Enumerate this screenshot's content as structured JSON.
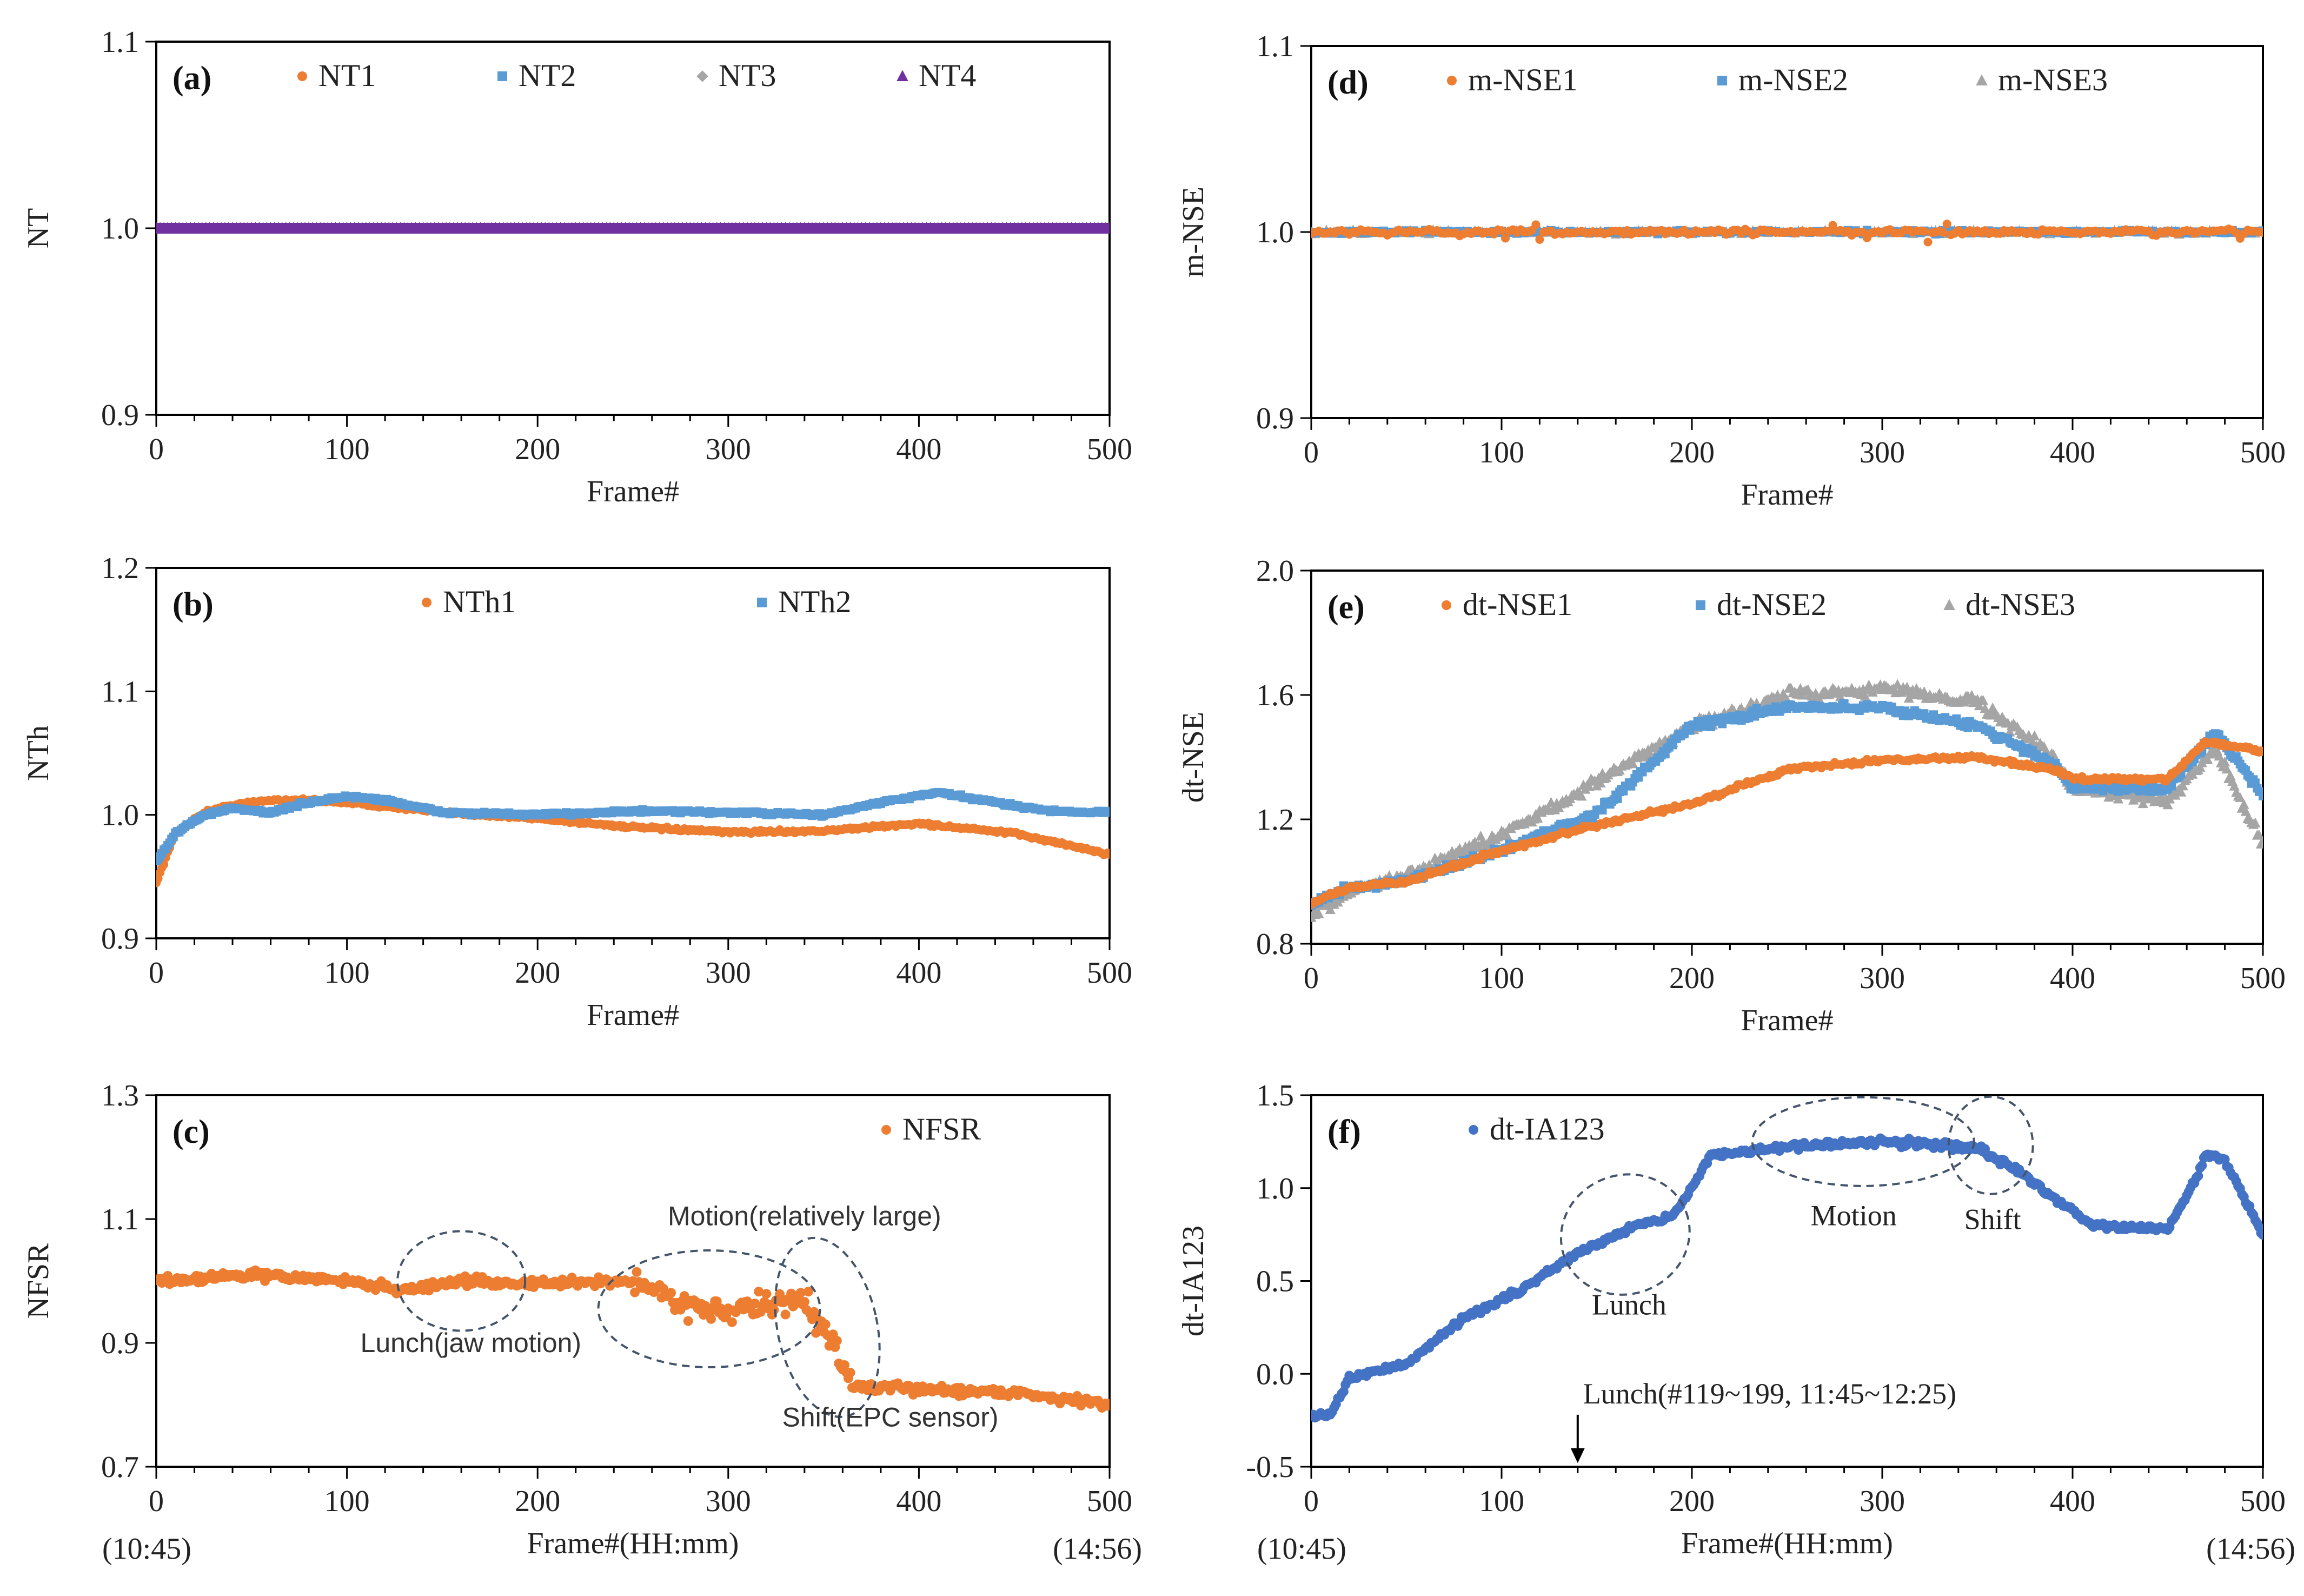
{
  "colors": {
    "orange": "#ED7D31",
    "blue": "#5B9BD5",
    "gray": "#A5A5A5",
    "purple": "#7030A0",
    "darkblue": "#4472C4",
    "frame": "#000000",
    "annot": "#44546A"
  },
  "chart_data": [
    {
      "id": "a",
      "type": "scatter",
      "tag": "(a)",
      "xlabel": "Frame#",
      "ylabel": "NT",
      "xlim": [
        0,
        500
      ],
      "ylim": [
        0.9,
        1.1
      ],
      "xticks": [
        "0",
        "100",
        "200",
        "300",
        "400",
        "500"
      ],
      "yticks": [
        "0.9",
        "1.0",
        "1.1"
      ],
      "legend": [
        "NT1",
        "NT2",
        "NT3",
        "NT4"
      ],
      "series": [
        {
          "name": "NT1",
          "color": "orange",
          "marker": "circle",
          "values": "constant 1.0 for frames 0-500"
        },
        {
          "name": "NT2",
          "color": "blue",
          "marker": "square",
          "values": "constant 1.0 for frames 0-500"
        },
        {
          "name": "NT3",
          "color": "gray",
          "marker": "diamond",
          "values": "constant 1.0 for frames 0-500"
        },
        {
          "name": "NT4",
          "color": "purple",
          "marker": "triangle",
          "values": "constant 1.0 for frames 0-500"
        }
      ]
    },
    {
      "id": "b",
      "type": "scatter",
      "tag": "(b)",
      "xlabel": "Frame#",
      "ylabel": "NTh",
      "xlim": [
        0,
        500
      ],
      "ylim": [
        0.9,
        1.2
      ],
      "xticks": [
        "0",
        "100",
        "200",
        "300",
        "400",
        "500"
      ],
      "yticks": [
        "0.9",
        "1.0",
        "1.1",
        "1.2"
      ],
      "legend": [
        "NTh1",
        "NTh2"
      ],
      "series": [
        {
          "name": "NTh1",
          "color": "orange",
          "marker": "circle",
          "x": [
            0,
            10,
            25,
            40,
            60,
            80,
            100,
            150,
            200,
            250,
            300,
            350,
            400,
            450,
            480,
            500
          ],
          "y": [
            0.945,
            0.985,
            1.002,
            1.008,
            1.012,
            1.012,
            1.01,
            1.002,
            0.997,
            0.99,
            0.986,
            0.987,
            0.993,
            0.985,
            0.975,
            0.968
          ]
        },
        {
          "name": "NTh2",
          "color": "blue",
          "marker": "square",
          "x": [
            0,
            10,
            25,
            40,
            60,
            80,
            100,
            120,
            150,
            200,
            250,
            300,
            350,
            380,
            410,
            440,
            470,
            500
          ],
          "y": [
            0.962,
            0.985,
            1.0,
            1.005,
            1.002,
            1.01,
            1.015,
            1.012,
            1.002,
            1.0,
            1.003,
            1.002,
            1.0,
            1.01,
            1.018,
            1.01,
            1.003,
            1.002
          ]
        }
      ]
    },
    {
      "id": "c",
      "type": "scatter",
      "tag": "(c)",
      "xlabel": "Frame#(HH:mm)",
      "ylabel": "NFSR",
      "xlim": [
        0,
        500
      ],
      "ylim": [
        0.7,
        1.3
      ],
      "xticks": [
        "0",
        "100",
        "200",
        "300",
        "400",
        "500"
      ],
      "yticks": [
        "0.7",
        "0.9",
        "1.1",
        "1.3"
      ],
      "time_start": "(10:45)",
      "time_end": "(14:56)",
      "legend": [
        "NFSR"
      ],
      "annotations": [
        "Lunch(jaw motion)",
        "Motion(relatively large)",
        "Shift(EPC sensor)"
      ],
      "series": [
        {
          "name": "NFSR",
          "color": "orange",
          "marker": "circle",
          "x": [
            0,
            50,
            100,
            130,
            160,
            200,
            250,
            280,
            300,
            340,
            355,
            365,
            400,
            450,
            500
          ],
          "y": [
            1.0,
            1.01,
            1.0,
            0.985,
            1.0,
            0.995,
            1.0,
            0.96,
            0.95,
            0.97,
            0.9,
            0.83,
            0.825,
            0.82,
            0.8
          ]
        }
      ]
    },
    {
      "id": "d",
      "type": "scatter",
      "tag": "(d)",
      "xlabel": "Frame#",
      "ylabel": "m-NSE",
      "xlim": [
        0,
        500
      ],
      "ylim": [
        0.9,
        1.1
      ],
      "xticks": [
        "0",
        "100",
        "200",
        "300",
        "400",
        "500"
      ],
      "yticks": [
        "0.9",
        "1.0",
        "1.1"
      ],
      "legend": [
        "m-NSE1",
        "m-NSE2",
        "m-NSE3"
      ],
      "series": [
        {
          "name": "m-NSE1",
          "color": "orange",
          "marker": "circle",
          "values": "about 1.0 with small noise (±0.008)"
        },
        {
          "name": "m-NSE2",
          "color": "blue",
          "marker": "square",
          "values": "about 1.0 with small noise"
        },
        {
          "name": "m-NSE3",
          "color": "gray",
          "marker": "triangle",
          "values": "about 1.0 with small noise"
        }
      ]
    },
    {
      "id": "e",
      "type": "scatter",
      "tag": "(e)",
      "xlabel": "Frame#",
      "ylabel": "dt-NSE",
      "xlim": [
        0,
        500
      ],
      "ylim": [
        0.8,
        2.0
      ],
      "xticks": [
        "0",
        "100",
        "200",
        "300",
        "400",
        "500"
      ],
      "yticks": [
        "0.8",
        "1.2",
        "1.6",
        "2.0"
      ],
      "legend": [
        "dt-NSE1",
        "dt-NSE2",
        "dt-NSE3"
      ],
      "series": [
        {
          "name": "dt-NSE1",
          "color": "orange",
          "marker": "circle",
          "x": [
            0,
            20,
            50,
            100,
            150,
            200,
            250,
            300,
            350,
            390,
            400,
            450,
            470,
            500
          ],
          "y": [
            0.93,
            0.98,
            1.0,
            1.1,
            1.18,
            1.25,
            1.36,
            1.39,
            1.4,
            1.36,
            1.33,
            1.33,
            1.45,
            1.42
          ]
        },
        {
          "name": "dt-NSE2",
          "color": "blue",
          "marker": "square",
          "x": [
            0,
            20,
            50,
            100,
            150,
            200,
            250,
            300,
            350,
            390,
            400,
            450,
            475,
            500
          ],
          "y": [
            0.93,
            0.98,
            1.0,
            1.1,
            1.22,
            1.5,
            1.56,
            1.56,
            1.5,
            1.38,
            1.3,
            1.3,
            1.48,
            1.28
          ]
        },
        {
          "name": "dt-NSE3",
          "color": "gray",
          "marker": "triangle",
          "x": [
            0,
            20,
            50,
            100,
            150,
            200,
            250,
            300,
            350,
            390,
            400,
            450,
            475,
            500
          ],
          "y": [
            0.88,
            0.97,
            1.02,
            1.15,
            1.32,
            1.5,
            1.6,
            1.62,
            1.58,
            1.4,
            1.3,
            1.26,
            1.43,
            1.12
          ]
        }
      ]
    },
    {
      "id": "f",
      "type": "scatter",
      "tag": "(f)",
      "xlabel": "Frame#(HH:mm)",
      "ylabel": "dt-IA123",
      "xlim": [
        0,
        500
      ],
      "ylim": [
        -0.5,
        1.5
      ],
      "xticks": [
        "0",
        "100",
        "200",
        "300",
        "400",
        "500"
      ],
      "yticks": [
        "-0.5",
        "0.0",
        "0.5",
        "1.0",
        "1.5"
      ],
      "time_start": "(10:45)",
      "time_end": "(14:56)",
      "legend": [
        "dt-IA123"
      ],
      "annotations": [
        "Lunch",
        "Motion",
        "Shift",
        "Lunch(#119~199, 11:45~12:25)"
      ],
      "series": [
        {
          "name": "dt-IA123",
          "color": "darkblue",
          "marker": "circle",
          "x": [
            0,
            10,
            20,
            50,
            80,
            110,
            140,
            170,
            190,
            200,
            210,
            250,
            300,
            350,
            370,
            390,
            410,
            450,
            465,
            470,
            480,
            490,
            500
          ],
          "y": [
            -0.23,
            -0.22,
            -0.02,
            0.05,
            0.3,
            0.45,
            0.65,
            0.8,
            0.85,
            1.0,
            1.18,
            1.22,
            1.25,
            1.22,
            1.1,
            0.95,
            0.8,
            0.78,
            1.05,
            1.18,
            1.15,
            0.95,
            0.75
          ]
        }
      ]
    }
  ]
}
